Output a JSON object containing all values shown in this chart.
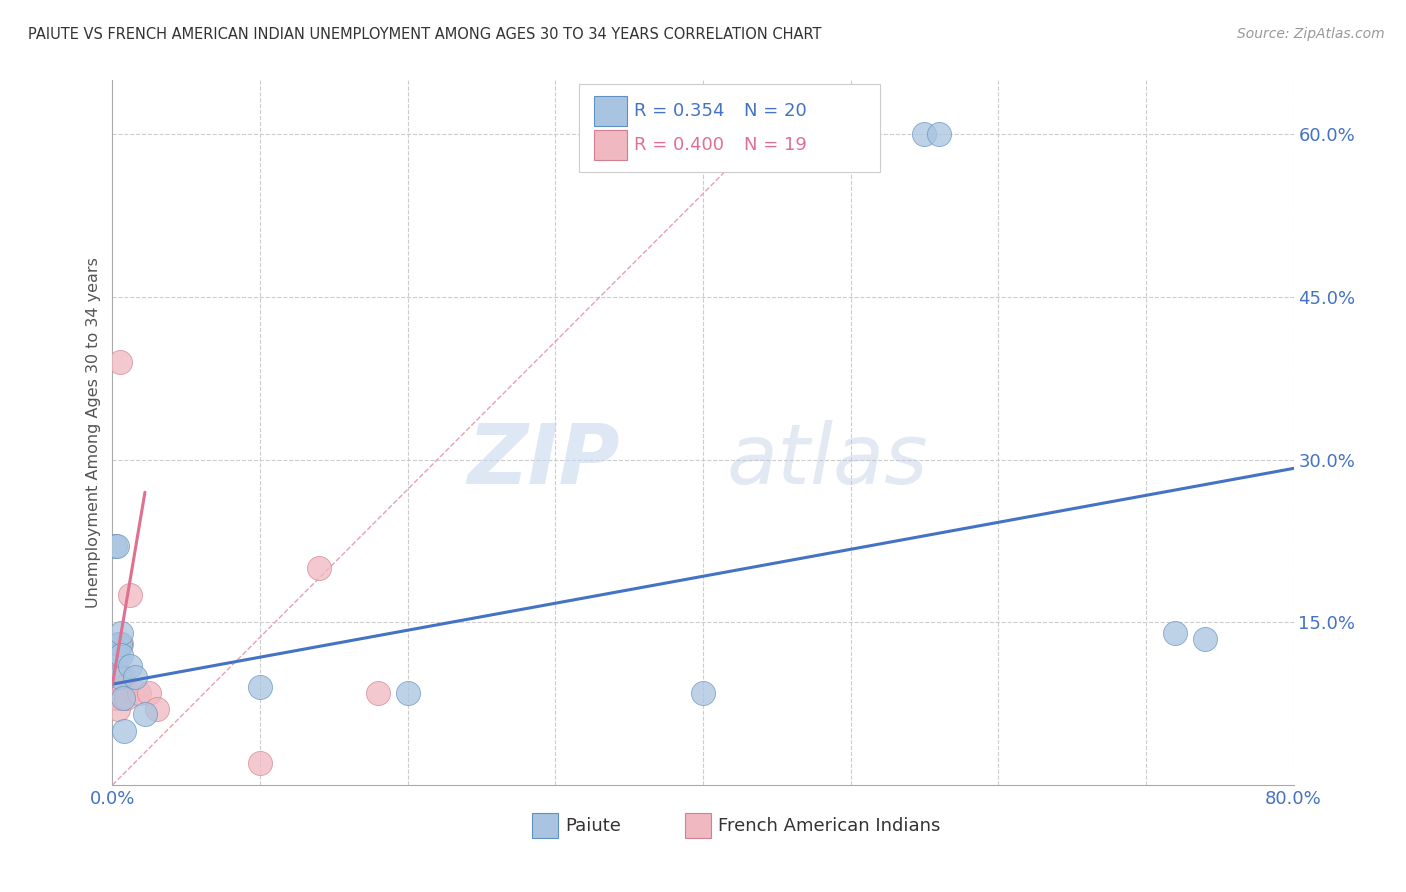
{
  "title": "PAIUTE VS FRENCH AMERICAN INDIAN UNEMPLOYMENT AMONG AGES 30 TO 34 YEARS CORRELATION CHART",
  "source": "Source: ZipAtlas.com",
  "ylabel": "Unemployment Among Ages 30 to 34 years",
  "xlim": [
    0,
    0.8
  ],
  "ylim": [
    0,
    0.65
  ],
  "xticks": [
    0.0,
    0.1,
    0.2,
    0.3,
    0.4,
    0.5,
    0.6,
    0.7,
    0.8
  ],
  "xticklabels": [
    "0.0%",
    "",
    "",
    "",
    "",
    "",
    "",
    "",
    "80.0%"
  ],
  "ytick_positions": [
    0.15,
    0.3,
    0.45,
    0.6
  ],
  "ytick_labels": [
    "15.0%",
    "30.0%",
    "45.0%",
    "60.0%"
  ],
  "paiute_color": "#a8c4e0",
  "french_color": "#f0b8c0",
  "paiute_line_color": "#4472c4",
  "french_line_color": "#e07090",
  "legend_R_paiute": "R = 0.354",
  "legend_N_paiute": "N = 20",
  "legend_R_french": "R = 0.400",
  "legend_N_french": "N = 19",
  "watermark_zip": "ZIP",
  "watermark_atlas": "atlas",
  "paiute_x": [
    0.002,
    0.003,
    0.004,
    0.004,
    0.005,
    0.005,
    0.006,
    0.006,
    0.007,
    0.008,
    0.012,
    0.015,
    0.022,
    0.1,
    0.2,
    0.4,
    0.55,
    0.56,
    0.72,
    0.74
  ],
  "paiute_y": [
    0.22,
    0.22,
    0.13,
    0.12,
    0.13,
    0.1,
    0.14,
    0.12,
    0.08,
    0.05,
    0.11,
    0.1,
    0.065,
    0.09,
    0.085,
    0.085,
    0.6,
    0.6,
    0.14,
    0.135
  ],
  "french_x": [
    0.001,
    0.002,
    0.003,
    0.003,
    0.004,
    0.004,
    0.005,
    0.005,
    0.006,
    0.007,
    0.008,
    0.009,
    0.012,
    0.018,
    0.1,
    0.14,
    0.18,
    0.025,
    0.03
  ],
  "french_y": [
    0.1,
    0.09,
    0.08,
    0.08,
    0.08,
    0.07,
    0.39,
    0.13,
    0.13,
    0.1,
    0.09,
    0.08,
    0.175,
    0.085,
    0.02,
    0.2,
    0.085,
    0.085,
    0.07
  ],
  "ref_line_x": [
    0.0,
    0.44
  ],
  "ref_line_y": [
    0.0,
    0.6
  ],
  "paiute_trend_x": [
    0.0,
    0.8
  ],
  "paiute_trend_y": [
    0.093,
    0.292
  ],
  "french_trend_x": [
    0.0,
    0.022
  ],
  "french_trend_y": [
    0.093,
    0.27
  ]
}
